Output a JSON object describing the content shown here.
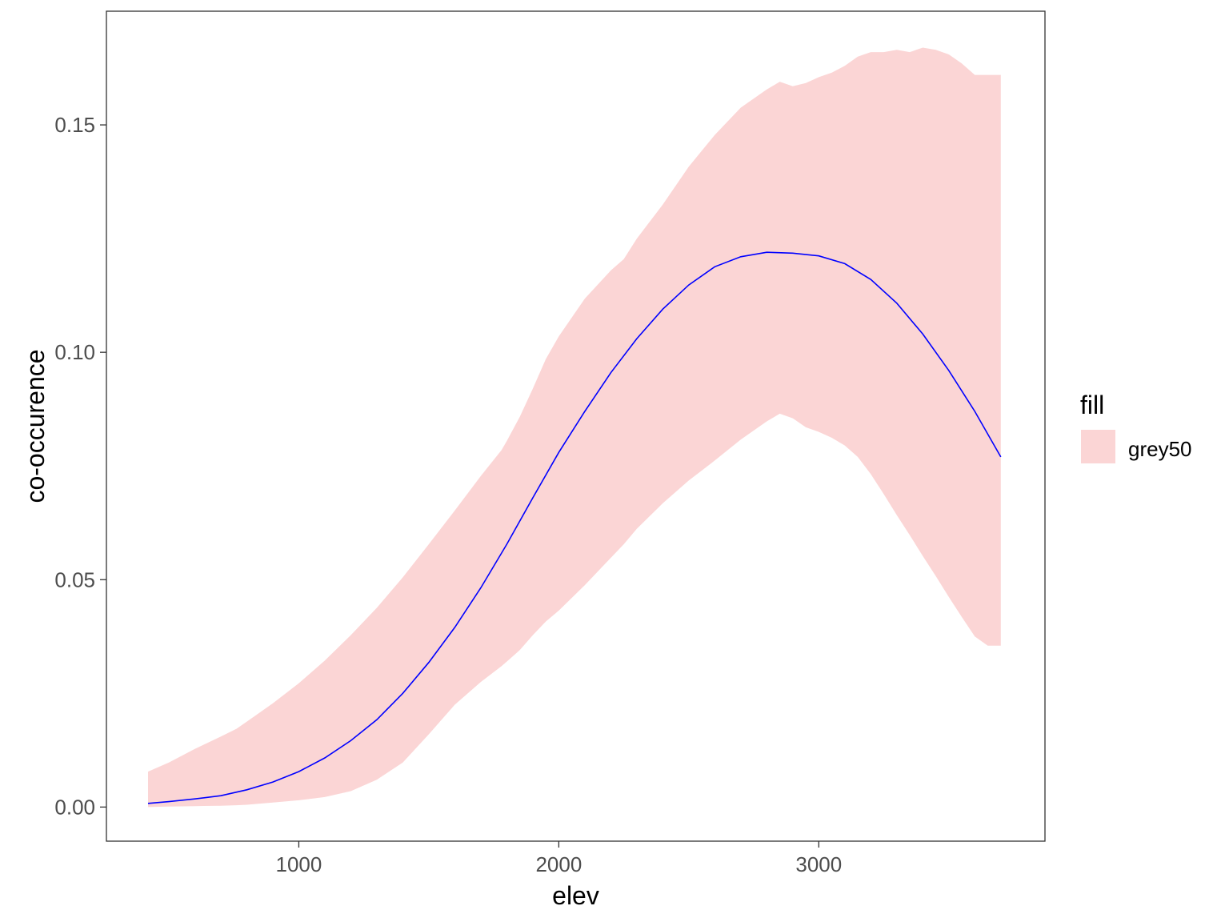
{
  "chart_data": {
    "type": "line",
    "title": "",
    "xlabel": "elev",
    "ylabel": "co-occurence",
    "xlim": [
      260,
      3870
    ],
    "ylim": [
      -0.0075,
      0.175
    ],
    "x_ticks": [
      1000,
      2000,
      3000
    ],
    "x_tick_labels": [
      "1000",
      "2000",
      "3000"
    ],
    "y_ticks": [
      0.0,
      0.05,
      0.1,
      0.15
    ],
    "y_tick_labels": [
      "0.00",
      "0.05",
      "0.10",
      "0.15"
    ],
    "grid": false,
    "legend": {
      "title": "fill",
      "position": "right",
      "entries": [
        {
          "label": "grey50",
          "color": "#FBD5D5"
        }
      ]
    },
    "series": [
      {
        "kind": "ribbon",
        "color": "#FBD5D5",
        "x": [
          420,
          500,
          600,
          700,
          760,
          800,
          900,
          1000,
          1100,
          1200,
          1300,
          1400,
          1500,
          1600,
          1700,
          1780,
          1800,
          1850,
          1900,
          1950,
          2000,
          2100,
          2200,
          2250,
          2300,
          2400,
          2500,
          2600,
          2700,
          2800,
          2850,
          2900,
          2950,
          3000,
          3050,
          3100,
          3150,
          3200,
          3250,
          3300,
          3350,
          3400,
          3450,
          3500,
          3550,
          3600,
          3650,
          3700
        ],
        "upper": [
          0.0078,
          0.0098,
          0.0128,
          0.0155,
          0.0172,
          0.0188,
          0.0228,
          0.0272,
          0.0322,
          0.0378,
          0.0438,
          0.0505,
          0.0578,
          0.0652,
          0.0728,
          0.0785,
          0.0805,
          0.0858,
          0.092,
          0.0985,
          0.1035,
          0.1118,
          0.118,
          0.1205,
          0.125,
          0.1325,
          0.1408,
          0.1478,
          0.1538,
          0.1578,
          0.1595,
          0.1585,
          0.1592,
          0.1605,
          0.1615,
          0.163,
          0.165,
          0.166,
          0.166,
          0.1665,
          0.166,
          0.167,
          0.1665,
          0.1655,
          0.1635,
          0.161,
          0.161,
          0.161
        ],
        "lower": [
          0.0,
          0.0001,
          0.0002,
          0.0003,
          0.0004,
          0.0005,
          0.001,
          0.0015,
          0.0022,
          0.0035,
          0.006,
          0.0098,
          0.016,
          0.0225,
          0.0275,
          0.031,
          0.032,
          0.0345,
          0.0378,
          0.0408,
          0.0432,
          0.0488,
          0.0548,
          0.0578,
          0.0612,
          0.0668,
          0.0718,
          0.0762,
          0.0808,
          0.0848,
          0.0865,
          0.0855,
          0.0835,
          0.0825,
          0.0812,
          0.0795,
          0.077,
          0.0732,
          0.0688,
          0.0642,
          0.0598,
          0.0552,
          0.0508,
          0.0462,
          0.0418,
          0.0375,
          0.0355,
          0.0355
        ]
      },
      {
        "kind": "line",
        "color": "#0000FF",
        "x": [
          420,
          500,
          600,
          700,
          800,
          900,
          1000,
          1100,
          1200,
          1300,
          1400,
          1500,
          1600,
          1700,
          1800,
          1900,
          2000,
          2100,
          2200,
          2300,
          2400,
          2500,
          2600,
          2700,
          2800,
          2900,
          3000,
          3100,
          3200,
          3300,
          3400,
          3500,
          3600,
          3700
        ],
        "y": [
          0.0008,
          0.0012,
          0.0018,
          0.0025,
          0.0038,
          0.0055,
          0.0078,
          0.0108,
          0.0146,
          0.0192,
          0.025,
          0.0318,
          0.0395,
          0.0482,
          0.0578,
          0.068,
          0.078,
          0.087,
          0.0955,
          0.103,
          0.1095,
          0.1148,
          0.1188,
          0.121,
          0.122,
          0.1218,
          0.1212,
          0.1195,
          0.116,
          0.1108,
          0.104,
          0.096,
          0.087,
          0.077
        ]
      }
    ]
  }
}
